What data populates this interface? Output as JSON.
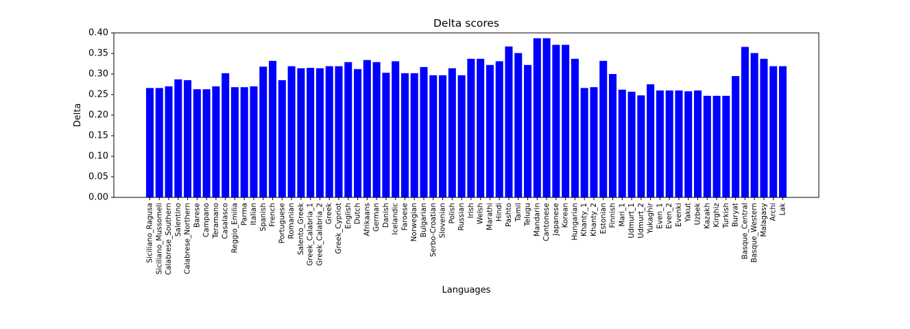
{
  "chart_data": {
    "type": "bar",
    "title": "Delta scores",
    "xlabel": "Languages",
    "ylabel": "Delta",
    "ylim": [
      0,
      0.4
    ],
    "yticks": [
      "0.00",
      "0.05",
      "0.10",
      "0.15",
      "0.20",
      "0.25",
      "0.30",
      "0.35",
      "0.40"
    ],
    "bar_color": "#0000ff",
    "grid": false,
    "categories": [
      "Siciliano_Ragusa",
      "Siciliano_Mussomeli",
      "Calabrese_Southern",
      "Salentino",
      "Calabrese_Northern",
      "Barese",
      "Campano",
      "Teramano",
      "Casalasco",
      "Reggio_Emilia",
      "Parma",
      "Italian",
      "Spanish",
      "French",
      "Portuguese",
      "Romanian",
      "Salento_Greek",
      "Greek_Calabria_1",
      "Greek_Calabria_2",
      "Greek",
      "Greek_Cypriot",
      "English",
      "Dutch",
      "Afrikaans",
      "German",
      "Danish",
      "Icelandic",
      "Faroese",
      "Norwegian",
      "Bulgarian",
      "Serbo-Croatian",
      "Slovenian",
      "Polish",
      "Russian",
      "Irish",
      "Welsh",
      "Marathi",
      "Hindi",
      "Pashto",
      "Tamil",
      "Telugu",
      "Mandarin",
      "Cantonese",
      "Japanese",
      "Korean",
      "Hungarian",
      "Khanty_1",
      "Khanty_2",
      "Estonian",
      "Finnish",
      "Mari_1",
      "Udmurt_1",
      "Udmurt_2",
      "Yukaghir",
      "Even_1",
      "Even_2",
      "Evenki",
      "Yakut",
      "Uzbek",
      "Kazakh",
      "Kirghiz",
      "Turkish",
      "Buryat",
      "Basque_Central",
      "Basque_Western",
      "Malagasy",
      "Archi",
      "Lak"
    ],
    "values": [
      0.266,
      0.266,
      0.27,
      0.287,
      0.285,
      0.263,
      0.263,
      0.27,
      0.302,
      0.268,
      0.268,
      0.27,
      0.318,
      0.332,
      0.285,
      0.319,
      0.314,
      0.315,
      0.314,
      0.319,
      0.319,
      0.329,
      0.312,
      0.334,
      0.329,
      0.303,
      0.331,
      0.302,
      0.302,
      0.317,
      0.297,
      0.297,
      0.314,
      0.297,
      0.337,
      0.337,
      0.322,
      0.331,
      0.367,
      0.351,
      0.322,
      0.387,
      0.387,
      0.371,
      0.371,
      0.337,
      0.266,
      0.268,
      0.332,
      0.3,
      0.262,
      0.257,
      0.248,
      0.275,
      0.26,
      0.26,
      0.26,
      0.258,
      0.26,
      0.247,
      0.247,
      0.247,
      0.295,
      0.366,
      0.351,
      0.337,
      0.319,
      0.319
    ]
  }
}
